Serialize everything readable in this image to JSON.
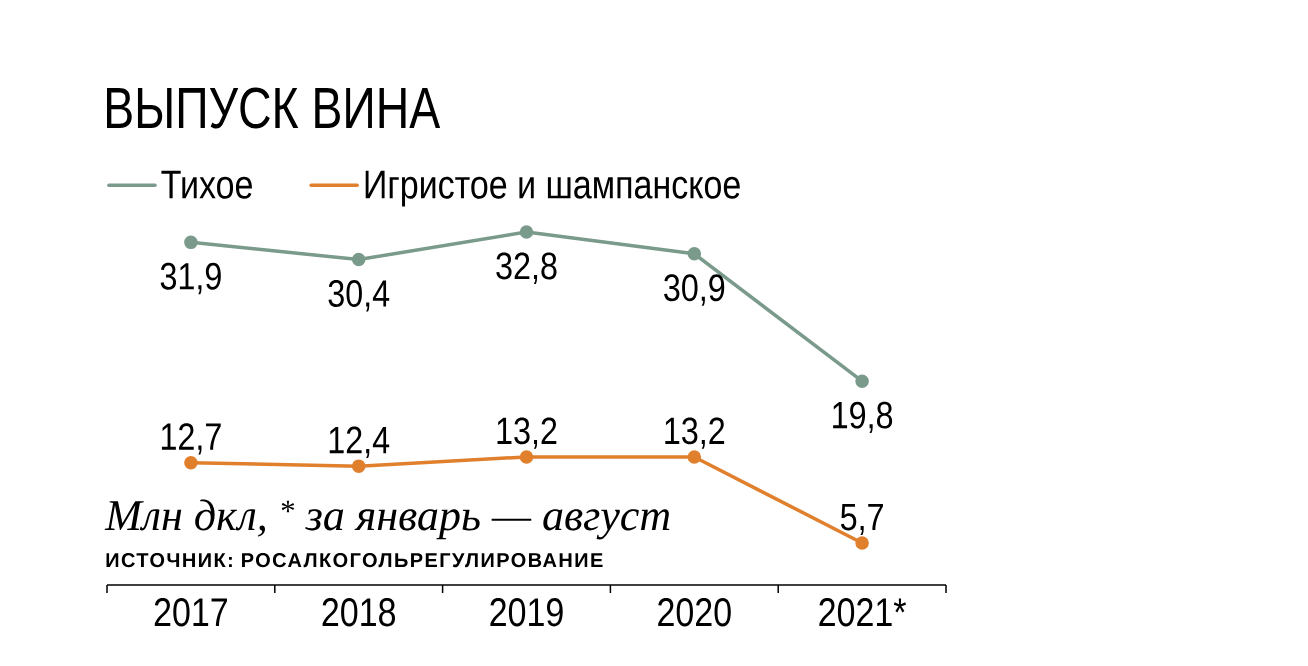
{
  "chart_data": {
    "type": "line",
    "title": "ВЫПУСК ВИНА",
    "categories": [
      "2017",
      "2018",
      "2019",
      "2020",
      "2021*"
    ],
    "series": [
      {
        "name": "Тихое",
        "color": "#7a9a8b",
        "values": [
          31.9,
          30.4,
          32.8,
          30.9,
          19.8
        ],
        "value_labels": [
          "31,9",
          "30,4",
          "32,8",
          "30,9",
          "19,8"
        ]
      },
      {
        "name": "Игристое и шампанское",
        "color": "#e07f2c",
        "values": [
          12.7,
          12.4,
          13.2,
          13.2,
          5.7
        ],
        "value_labels": [
          "12,7",
          "12,4",
          "13,2",
          "13,2",
          "5,7"
        ]
      }
    ],
    "annotations": [
      "Млн дкл, $^{*}$ за январь — август",
      "ИСТОЧНИК: РОСАЛКОГОЛЬРЕГУЛИРОВАНИЕ"
    ],
    "legend": "top left",
    "marker": "circle",
    "line_style": "solid",
    "tick_labels": "x"
  }
}
